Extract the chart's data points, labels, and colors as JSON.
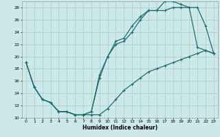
{
  "xlabel": "Humidex (Indice chaleur)",
  "xlim": [
    -0.5,
    23.5
  ],
  "ylim": [
    10,
    29
  ],
  "xticks": [
    0,
    1,
    2,
    3,
    4,
    5,
    6,
    7,
    8,
    9,
    10,
    11,
    12,
    13,
    14,
    15,
    16,
    17,
    18,
    19,
    20,
    21,
    22,
    23
  ],
  "yticks": [
    10,
    12,
    14,
    16,
    18,
    20,
    22,
    24,
    26,
    28
  ],
  "background_color": "#cce8e8",
  "grid_color": "#aacccc",
  "line_color": "#1a6e6e",
  "line1_x": [
    0,
    1,
    2,
    3,
    4,
    5,
    6,
    7,
    8,
    9,
    10,
    11,
    12,
    13,
    14,
    15,
    16,
    17,
    18,
    19,
    20,
    21,
    22,
    23
  ],
  "line1_y": [
    19,
    15,
    13,
    12.5,
    11,
    11,
    10.5,
    10.5,
    11,
    17,
    20,
    22,
    22.5,
    24,
    26,
    27.5,
    27.5,
    27.5,
    28,
    28,
    28,
    21.5,
    21,
    20.5
  ],
  "line2_x": [
    0,
    1,
    2,
    3,
    4,
    5,
    6,
    7,
    8,
    9,
    10,
    11,
    12,
    13,
    14,
    15,
    16,
    17,
    18,
    19,
    20,
    21,
    22,
    23
  ],
  "line2_y": [
    19,
    15,
    13,
    12.5,
    11,
    11,
    10.5,
    10.5,
    11,
    16.5,
    20,
    22.5,
    23,
    25,
    26.5,
    27.5,
    27.5,
    29,
    29,
    28.5,
    28,
    28,
    25,
    20.5
  ],
  "line3_x": [
    0,
    1,
    2,
    3,
    4,
    5,
    6,
    7,
    8,
    9,
    10,
    11,
    12,
    13,
    14,
    15,
    16,
    17,
    18,
    19,
    20,
    21,
    22,
    23
  ],
  "line3_y": [
    19,
    15,
    13,
    12.5,
    11,
    11,
    10.5,
    10.5,
    10.5,
    10.5,
    11.5,
    13,
    14.5,
    15.5,
    16.5,
    17.5,
    18,
    18.5,
    19,
    19.5,
    20,
    20.5,
    21,
    20.5
  ]
}
